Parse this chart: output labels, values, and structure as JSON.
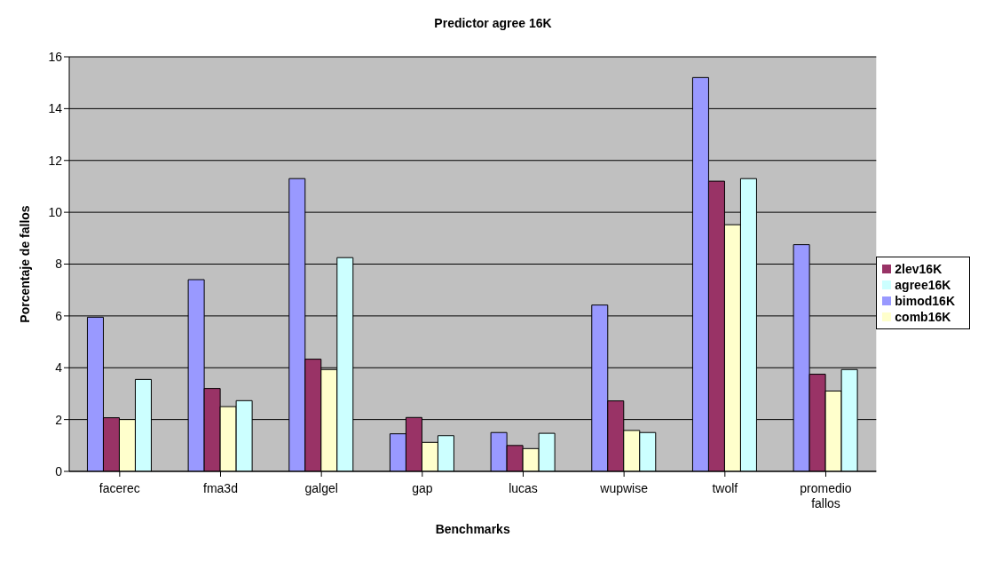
{
  "chart_data": {
    "type": "bar",
    "title": "Predictor agree 16K",
    "xlabel": "Benchmarks",
    "ylabel": "Porcentaje de fallos",
    "categories": [
      "facerec",
      "fma3d",
      "galgel",
      "gap",
      "lucas",
      "wupwise",
      "twolf",
      "promedio fallos"
    ],
    "series": [
      {
        "name": "bimod16K",
        "color": "#9999ff",
        "values": [
          5.95,
          7.4,
          11.3,
          1.45,
          1.5,
          6.42,
          15.2,
          8.75
        ]
      },
      {
        "name": "2lev16K",
        "color": "#993366",
        "values": [
          2.07,
          3.2,
          4.33,
          2.08,
          1.0,
          2.72,
          11.2,
          3.75
        ]
      },
      {
        "name": "comb16K",
        "color": "#ffffcc",
        "values": [
          2.0,
          2.5,
          3.93,
          1.12,
          0.88,
          1.58,
          9.52,
          3.1
        ]
      },
      {
        "name": "agree16K",
        "color": "#ccffff",
        "values": [
          3.55,
          2.73,
          8.25,
          1.38,
          1.47,
          1.5,
          11.3,
          3.93
        ]
      }
    ],
    "ylim": [
      0,
      16
    ],
    "yticks": [
      0,
      2,
      4,
      6,
      8,
      10,
      12,
      14,
      16
    ],
    "grid": "y",
    "legend": "right"
  }
}
